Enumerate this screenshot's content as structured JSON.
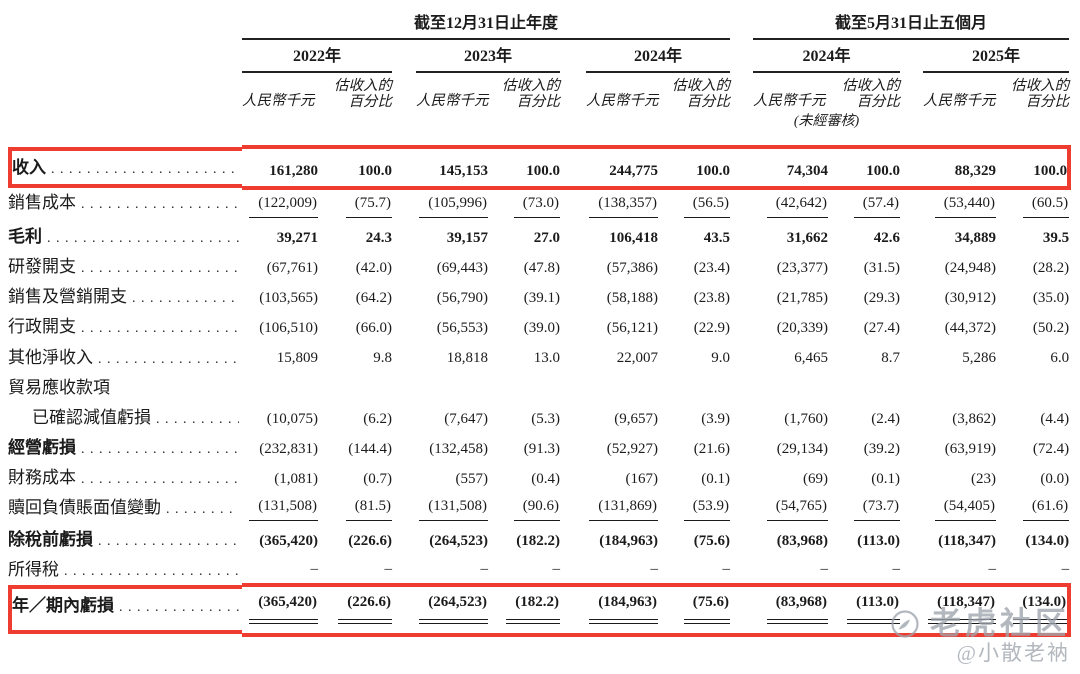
{
  "table": {
    "sections": [
      {
        "title": "截至12月31日止年度"
      },
      {
        "title": "截至5月31日止五個月"
      }
    ],
    "columns": [
      {
        "year": "2022年"
      },
      {
        "year": "2023年"
      },
      {
        "year": "2024年"
      },
      {
        "year": "2024年",
        "note": "(未經審核)"
      },
      {
        "year": "2025年"
      }
    ],
    "subhead": {
      "amount": "人民幣千元",
      "pct1": "估收入的",
      "pct2": "百分比"
    },
    "rows": [
      {
        "label": "收入",
        "bold_label": true,
        "bold_values": true,
        "highlight": true,
        "values": [
          "161,280",
          "100.0",
          "145,153",
          "100.0",
          "244,775",
          "100.0",
          "74,304",
          "100.0",
          "88,329",
          "100.0"
        ]
      },
      {
        "label": "銷售成本",
        "rule_below": true,
        "values": [
          "(122,009)",
          "(75.7)",
          "(105,996)",
          "(73.0)",
          "(138,357)",
          "(56.5)",
          "(42,642)",
          "(57.4)",
          "(53,440)",
          "(60.5)"
        ]
      },
      {
        "label": "毛利",
        "bold_label": true,
        "bold_values": true,
        "values": [
          "39,271",
          "24.3",
          "39,157",
          "27.0",
          "106,418",
          "43.5",
          "31,662",
          "42.6",
          "34,889",
          "39.5"
        ]
      },
      {
        "label": "研發開支",
        "values": [
          "(67,761)",
          "(42.0)",
          "(69,443)",
          "(47.8)",
          "(57,386)",
          "(23.4)",
          "(23,377)",
          "(31.5)",
          "(24,948)",
          "(28.2)"
        ]
      },
      {
        "label": "銷售及營銷開支",
        "values": [
          "(103,565)",
          "(64.2)",
          "(56,790)",
          "(39.1)",
          "(58,188)",
          "(23.8)",
          "(21,785)",
          "(29.3)",
          "(30,912)",
          "(35.0)"
        ]
      },
      {
        "label": "行政開支",
        "values": [
          "(106,510)",
          "(66.0)",
          "(56,553)",
          "(39.0)",
          "(56,121)",
          "(22.9)",
          "(20,339)",
          "(27.4)",
          "(44,372)",
          "(50.2)"
        ]
      },
      {
        "label": "其他淨收入",
        "values": [
          "15,809",
          "9.8",
          "18,818",
          "13.0",
          "22,007",
          "9.0",
          "6,465",
          "8.7",
          "5,286",
          "6.0"
        ]
      },
      {
        "label": "貿易應收款項",
        "dots": false,
        "values": null
      },
      {
        "label": "已確認減值虧損",
        "indent": true,
        "values": [
          "(10,075)",
          "(6.2)",
          "(7,647)",
          "(5.3)",
          "(9,657)",
          "(3.9)",
          "(1,760)",
          "(2.4)",
          "(3,862)",
          "(4.4)"
        ]
      },
      {
        "label": "經營虧損",
        "bold_label": true,
        "values": [
          "(232,831)",
          "(144.4)",
          "(132,458)",
          "(91.3)",
          "(52,927)",
          "(21.6)",
          "(29,134)",
          "(39.2)",
          "(63,919)",
          "(72.4)"
        ]
      },
      {
        "label": "財務成本",
        "values": [
          "(1,081)",
          "(0.7)",
          "(557)",
          "(0.4)",
          "(167)",
          "(0.1)",
          "(69)",
          "(0.1)",
          "(23)",
          "(0.0)"
        ]
      },
      {
        "label": "贖回負債賬面值變動",
        "rule_below": true,
        "values": [
          "(131,508)",
          "(81.5)",
          "(131,508)",
          "(90.6)",
          "(131,869)",
          "(53.9)",
          "(54,765)",
          "(73.7)",
          "(54,405)",
          "(61.6)"
        ]
      },
      {
        "label": "除稅前虧損",
        "bold_label": true,
        "bold_values": true,
        "values": [
          "(365,420)",
          "(226.6)",
          "(264,523)",
          "(182.2)",
          "(184,963)",
          "(75.6)",
          "(83,968)",
          "(113.0)",
          "(118,347)",
          "(134.0)"
        ]
      },
      {
        "label": "所得稅",
        "values": [
          "–",
          "–",
          "–",
          "–",
          "–",
          "–",
          "–",
          "–",
          "–",
          "–"
        ]
      },
      {
        "label": "年／期內虧損",
        "bold_label": true,
        "bold_values": true,
        "highlight": true,
        "double_rule": true,
        "values": [
          "(365,420)",
          "(226.6)",
          "(264,523)",
          "(182.2)",
          "(184,963)",
          "(75.6)",
          "(83,968)",
          "(113.0)",
          "(118,347)",
          "(134.0)"
        ]
      }
    ]
  },
  "watermark": {
    "brand": "老虎社区",
    "handle": "@小散老衲"
  },
  "colors": {
    "highlight_box_red": "#ee3d30",
    "text_black": "#1b1b1b",
    "watermark_gray": "#9ea4ad"
  }
}
